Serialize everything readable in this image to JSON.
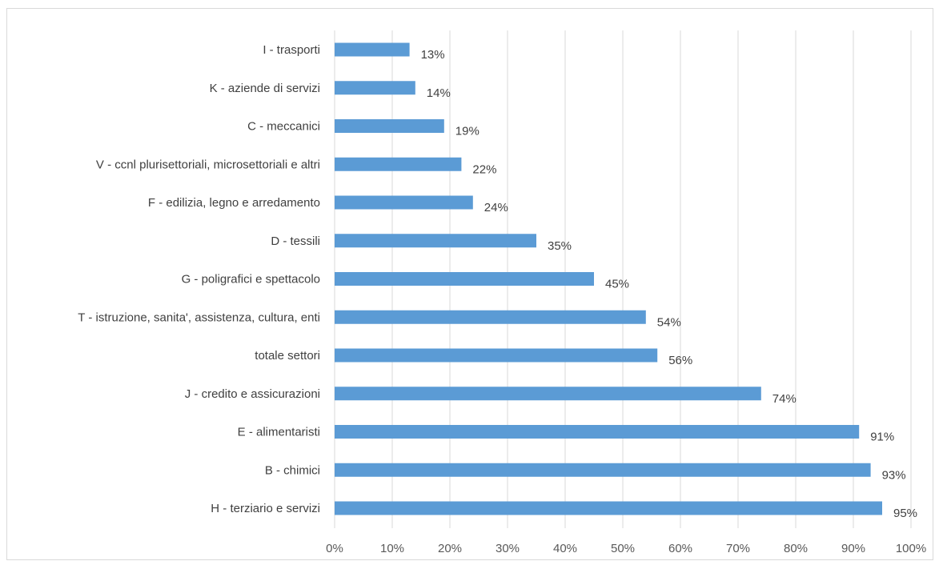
{
  "chart_data": {
    "type": "bar",
    "orientation": "horizontal",
    "categories": [
      "I - trasporti",
      "K - aziende di servizi",
      "C - meccanici",
      "V - ccnl plurisettoriali, microsettoriali e altri",
      "F - edilizia, legno e arredamento",
      "D - tessili",
      "G - poligrafici e spettacolo",
      "T - istruzione, sanita', assistenza, cultura, enti",
      "totale settori",
      "J - credito e assicurazioni",
      "E - alimentaristi",
      "B - chimici",
      "H - terziario e servizi"
    ],
    "values": [
      13,
      14,
      19,
      22,
      24,
      35,
      45,
      54,
      56,
      74,
      91,
      93,
      95
    ],
    "value_labels": [
      "13%",
      "14%",
      "19%",
      "22%",
      "24%",
      "35%",
      "45%",
      "54%",
      "56%",
      "74%",
      "91%",
      "93%",
      "95%"
    ],
    "x_ticks": [
      0,
      10,
      20,
      30,
      40,
      50,
      60,
      70,
      80,
      90,
      100
    ],
    "x_tick_labels": [
      "0%",
      "10%",
      "20%",
      "30%",
      "40%",
      "50%",
      "60%",
      "70%",
      "80%",
      "90%",
      "100%"
    ],
    "xlim": [
      0,
      100
    ],
    "grid": "vertical",
    "legend": "none",
    "title": "",
    "xlabel": "",
    "ylabel": "",
    "colors": {
      "bar": "#5b9bd5",
      "text": "#404040",
      "grid": "#d9d9d9"
    }
  }
}
